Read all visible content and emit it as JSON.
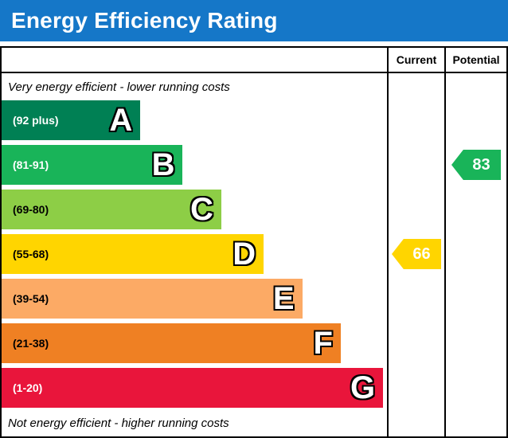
{
  "header": {
    "title": "Energy Efficiency Rating",
    "background_color": "#1577c8",
    "text_color": "#ffffff"
  },
  "columns": {
    "current": "Current",
    "potential": "Potential"
  },
  "captions": {
    "top": "Very energy efficient - lower running costs",
    "bottom": "Not energy efficient - higher running costs"
  },
  "chart_data": {
    "type": "bar",
    "title": "Energy Efficiency Rating",
    "bands": [
      {
        "letter": "A",
        "range": "(92 plus)",
        "min": 92,
        "max": 100,
        "color": "#008054",
        "label_color": "#ffffff",
        "width_pct": 36
      },
      {
        "letter": "B",
        "range": "(81-91)",
        "min": 81,
        "max": 91,
        "color": "#19b459",
        "label_color": "#ffffff",
        "width_pct": 47
      },
      {
        "letter": "C",
        "range": "(69-80)",
        "min": 69,
        "max": 80,
        "color": "#8dce46",
        "label_color": "#000000",
        "width_pct": 57
      },
      {
        "letter": "D",
        "range": "(55-68)",
        "min": 55,
        "max": 68,
        "color": "#ffd500",
        "label_color": "#000000",
        "width_pct": 68
      },
      {
        "letter": "E",
        "range": "(39-54)",
        "min": 39,
        "max": 54,
        "color": "#fcaa65",
        "label_color": "#000000",
        "width_pct": 78
      },
      {
        "letter": "F",
        "range": "(21-38)",
        "min": 21,
        "max": 38,
        "color": "#ef8023",
        "label_color": "#000000",
        "width_pct": 88
      },
      {
        "letter": "G",
        "range": "(1-20)",
        "min": 1,
        "max": 20,
        "color": "#e9153b",
        "label_color": "#ffffff",
        "width_pct": 99
      }
    ],
    "markers": {
      "current": {
        "value": 66,
        "band": "D",
        "color": "#ffd500"
      },
      "potential": {
        "value": 83,
        "band": "B",
        "color": "#19b459"
      }
    }
  }
}
